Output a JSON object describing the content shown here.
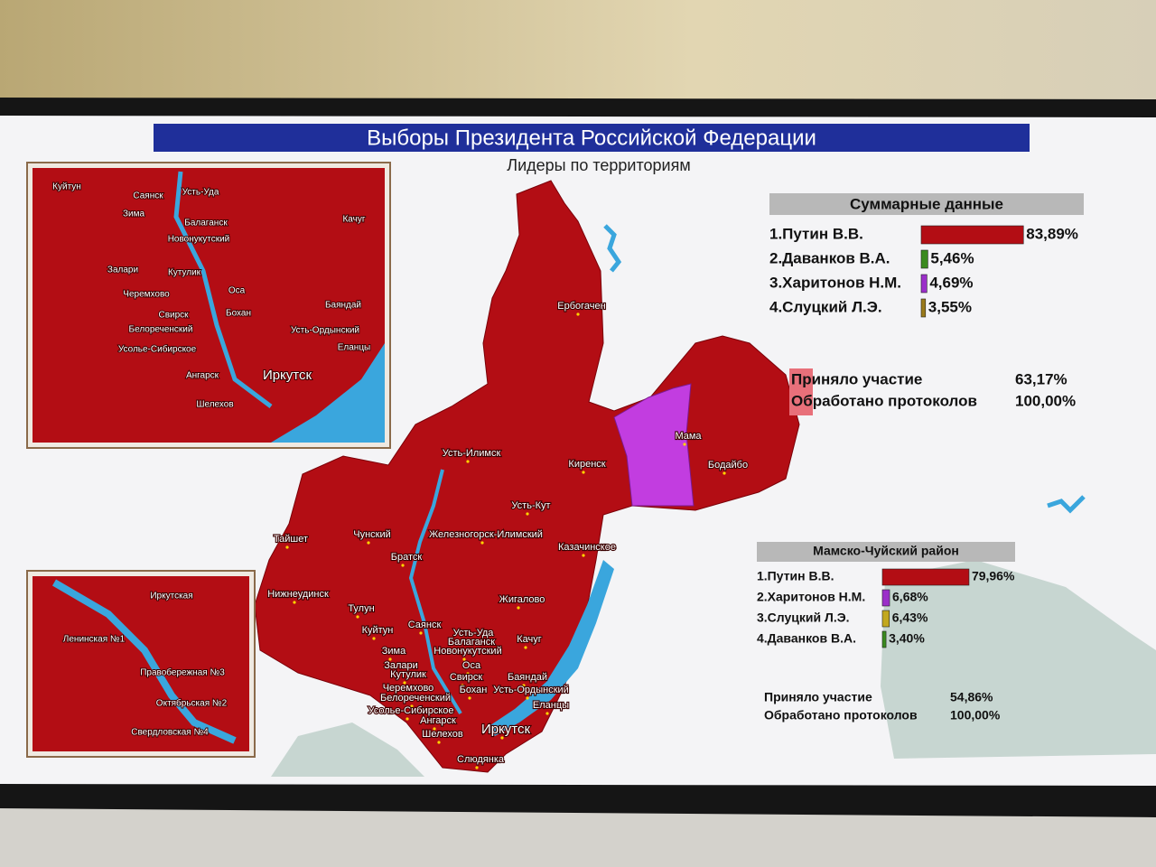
{
  "header": {
    "title": "Выборы Президента Российской Федерации",
    "subtitle": "Лидеры по территориям"
  },
  "summary": {
    "title": "Суммарные данные",
    "candidates": [
      {
        "name": "1.Путин В.В.",
        "color": "#b30d14",
        "share": {
          "value": 83.89,
          "label": "83,89%"
        }
      },
      {
        "name": "2.Даванков В.А.",
        "color": "#3a8a1e",
        "share": {
          "value": 5.46,
          "label": "5,46%"
        }
      },
      {
        "name": "3.Харитонов Н.М.",
        "color": "#9b2fc9",
        "share": {
          "value": 4.69,
          "label": "4,69%"
        }
      },
      {
        "name": "4.Слуцкий Л.Э.",
        "color": "#9a7a1a",
        "share": {
          "value": 3.55,
          "label": "3,55%"
        }
      }
    ],
    "stats": [
      [
        "Приняло участие",
        "63,17%"
      ],
      [
        "Обработано протоколов",
        "100,00%"
      ]
    ]
  },
  "district": {
    "title": "Мамско-Чуйский район",
    "candidates": [
      {
        "name": "1.Путин В.В.",
        "color": "#b30d14",
        "share": {
          "value": 79.96,
          "label": "79,96%"
        }
      },
      {
        "name": "2.Харитонов Н.М.",
        "color": "#9b2fc9",
        "share": {
          "value": 6.68,
          "label": "6,68%"
        }
      },
      {
        "name": "3.Слуцкий Л.Э.",
        "color": "#c2a81e",
        "share": {
          "value": 6.43,
          "label": "6,43%"
        }
      },
      {
        "name": "4.Даванков В.А.",
        "color": "#3a8a1e",
        "share": {
          "value": 3.4,
          "label": "3,40%"
        }
      }
    ],
    "stats": [
      [
        "Приняло участие",
        "54,86%"
      ],
      [
        "Обработано протоколов",
        "100,00%"
      ]
    ]
  },
  "map": {
    "places": [
      "Ербогачен",
      "Мама",
      "Бодайбо",
      "Киренск",
      "Усть-Илимск",
      "Усть-Кут",
      "Чунский",
      "Тайшет",
      "Железногорск-Илимский",
      "Братск",
      "Казачинское",
      "Нижнеудинск",
      "Тулун",
      "Жигалово",
      "Куйтун",
      "Саянск",
      "Усть-Уда",
      "Качуг",
      "Балаганск",
      "Новонукутский",
      "Зима",
      "Залари",
      "Оса",
      "Кутулик",
      "Свирск",
      "Баяндай",
      "Черемхово",
      "Бохан",
      "Усть-Ордынский",
      "Белореченский",
      "Еланцы",
      "Усолье-Сибирское",
      "Ангарск",
      "Иркутск",
      "Шелехов",
      "Слюдянка"
    ]
  },
  "inset_top": {
    "places": [
      "Куйтун",
      "Саянск",
      "Усть-Уда",
      "Зима",
      "Балаганск",
      "Качуг",
      "Новонукутский",
      "Залари",
      "Кутулик",
      "Оса",
      "Черемхово",
      "Баяндай",
      "Свирск",
      "Бохан",
      "Белореченский",
      "Усть-Ордынский",
      "Усолье-Сибирское",
      "Еланцы",
      "Иркутск",
      "Ангарск",
      "Шелехов"
    ]
  },
  "inset_bottom": {
    "places": [
      "Иркутская",
      "Ленинская №1",
      "Правобережная №3",
      "Октябрьская №2",
      "Свердловская №4"
    ]
  }
}
